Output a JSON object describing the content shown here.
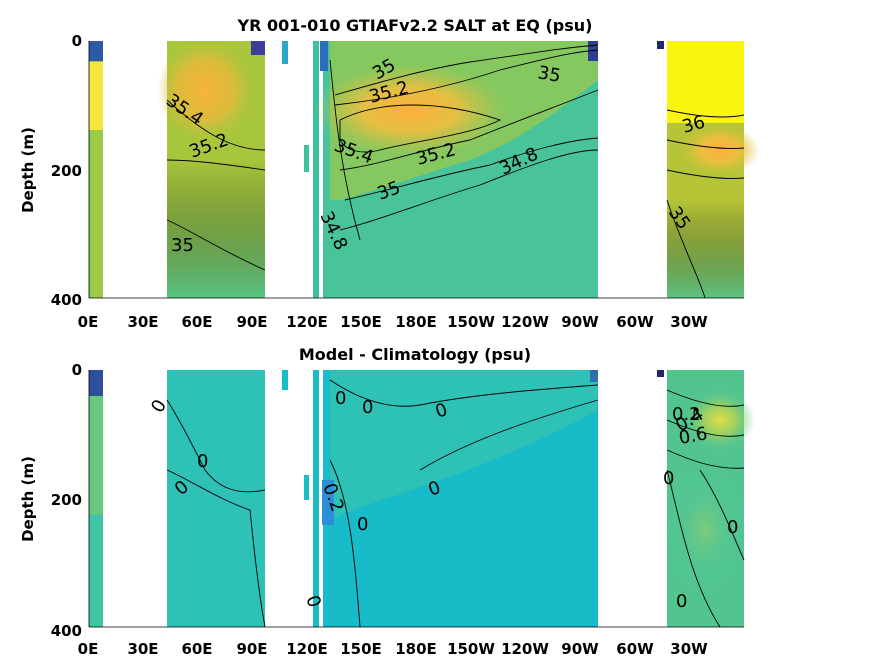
{
  "chart_data": [
    {
      "type": "heatmap",
      "title": "YR 001-010 GTIAFv2.2 SALT at EQ (psu)",
      "ylabel": "Depth (m)",
      "x_ticks": [
        "0E",
        "30E",
        "60E",
        "90E",
        "120E",
        "150E",
        "180E",
        "150W",
        "120W",
        "90W",
        "60W",
        "30W"
      ],
      "xlim_deg_east": [
        0,
        360
      ],
      "y_ticks": [
        "0",
        "200",
        "400"
      ],
      "ylim": [
        0,
        400
      ],
      "y_reversed": true,
      "contour_labels": [
        {
          "text": "35.4",
          "lon": 50,
          "depth": 95
        },
        {
          "text": "35.2",
          "lon": 66,
          "depth": 160
        },
        {
          "text": "35",
          "lon": 52,
          "depth": 312
        },
        {
          "text": "35",
          "lon": 185,
          "depth": 50
        },
        {
          "text": "35.2",
          "lon": 180,
          "depth": 80
        },
        {
          "text": "35.4",
          "lon": 148,
          "depth": 165
        },
        {
          "text": "35.2",
          "lon": 198,
          "depth": 180
        },
        {
          "text": "35",
          "lon": 168,
          "depth": 232
        },
        {
          "text": "34.8",
          "lon": 138,
          "depth": 285
        },
        {
          "text": "34.8",
          "lon": 245,
          "depth": 185
        },
        {
          "text": "35",
          "lon": 262,
          "depth": 45
        },
        {
          "text": "36",
          "lon": 335,
          "depth": 125
        },
        {
          "text": "35",
          "lon": 327,
          "depth": 275
        }
      ],
      "colors": {
        "high": "#f9fb0e",
        "mid": "#48c59a",
        "low": "#352a87"
      }
    },
    {
      "type": "heatmap",
      "title": "Model - Climatology (psu)",
      "ylabel": "Depth (m)",
      "x_ticks": [
        "0E",
        "30E",
        "60E",
        "90E",
        "120E",
        "150E",
        "180E",
        "150W",
        "120W",
        "90W",
        "60W",
        "30W"
      ],
      "xlim_deg_east": [
        0,
        360
      ],
      "y_ticks": [
        "0",
        "200",
        "400"
      ],
      "ylim": [
        0,
        400
      ],
      "y_reversed": true,
      "contour_labels": [
        {
          "text": "0",
          "lon": 44,
          "depth": 75
        },
        {
          "text": "0",
          "lon": 66,
          "depth": 145
        },
        {
          "text": "0",
          "lon": 56,
          "depth": 192
        },
        {
          "text": "0",
          "lon": 140,
          "depth": 45
        },
        {
          "text": "0",
          "lon": 157,
          "depth": 60
        },
        {
          "text": "0",
          "lon": 198,
          "depth": 70
        },
        {
          "text": "0",
          "lon": 195,
          "depth": 188
        },
        {
          "text": "0.2",
          "lon": 137,
          "depth": 203
        },
        {
          "text": "0",
          "lon": 153,
          "depth": 238
        },
        {
          "text": "0",
          "lon": 124,
          "depth": 348
        },
        {
          "text": "0.2",
          "lon": 325,
          "depth": 65
        },
        {
          "text": "0.4",
          "lon": 332,
          "depth": 92
        },
        {
          "text": "0.6",
          "lon": 335,
          "depth": 108
        },
        {
          "text": "0",
          "lon": 322,
          "depth": 170
        },
        {
          "text": "0",
          "lon": 358,
          "depth": 240
        },
        {
          "text": "0",
          "lon": 329,
          "depth": 358
        }
      ],
      "colors": {
        "zero": "#1fbec4",
        "positive": "#8cd06a",
        "high": "#f5e33a",
        "negative": "#2e7fd6"
      }
    }
  ]
}
